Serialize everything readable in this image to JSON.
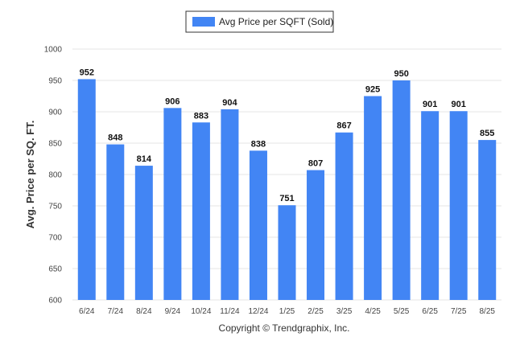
{
  "colors": {
    "bar": "#4285F4",
    "grid": "#e6e6e6",
    "legend_border": "#333333"
  },
  "legend": {
    "label": "Avg Price per SQFT (Sold)"
  },
  "footer": {
    "copyright": "Copyright © Trendgraphix, Inc."
  },
  "chart_data": {
    "type": "bar",
    "ylabel": "Avg. Price per SQ. FT.",
    "xlabel": "",
    "ylim": [
      600,
      1000
    ],
    "yticks": [
      600,
      650,
      700,
      750,
      800,
      850,
      900,
      950,
      1000
    ],
    "grid": true,
    "legend_position": "top-center",
    "categories": [
      "6/24",
      "7/24",
      "8/24",
      "9/24",
      "10/24",
      "11/24",
      "12/24",
      "1/25",
      "2/25",
      "3/25",
      "4/25",
      "5/25",
      "6/25",
      "7/25",
      "8/25"
    ],
    "series": [
      {
        "name": "Avg Price per SQFT (Sold)",
        "values": [
          952,
          848,
          814,
          906,
          883,
          904,
          838,
          751,
          807,
          867,
          925,
          950,
          901,
          901,
          855
        ]
      }
    ]
  }
}
